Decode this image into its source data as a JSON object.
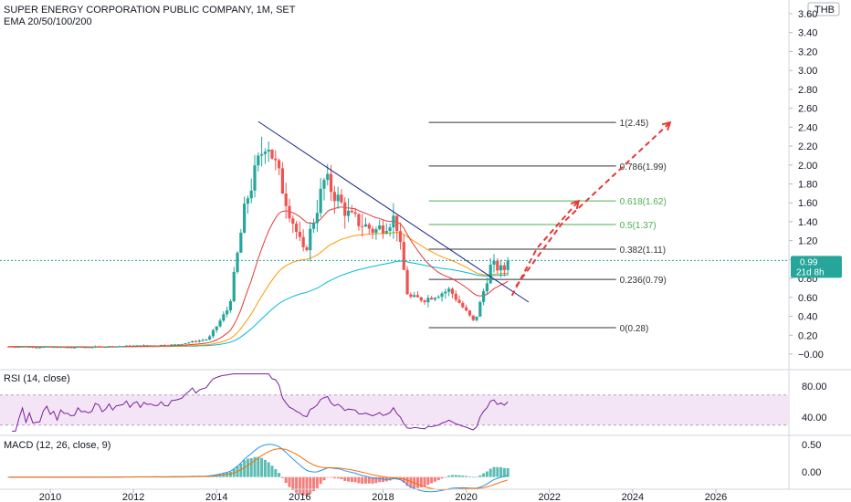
{
  "header": {
    "title": "SUPER ENERGY CORPORATION PUBLIC COMPANY, 1M, SET",
    "indicator": "EMA 20/50/100/200",
    "currency": "THB"
  },
  "price_badge": {
    "value": "0.99",
    "countdown": "21d 8h",
    "color": "#26a69a"
  },
  "rsi_panel": {
    "label": "RSI (14, close)",
    "ticks": [
      "80.00",
      "40.00"
    ]
  },
  "macd_panel": {
    "label": "MACD (12, 26, close, 9)",
    "ticks": [
      "0.50",
      "0.00"
    ]
  },
  "colors": {
    "up": "#26a69a",
    "down": "#ef5350",
    "ema20": "#e53935",
    "ema50": "#ff9800",
    "ema100": "#00bcd4",
    "trendline": "#1a237e",
    "rsi": "#7b1fa2",
    "fib_gray": "#333333",
    "fib_green": "#4caf50",
    "forecast": "#e53935"
  },
  "chart_data": {
    "type": "candlestick",
    "x_ticks": [
      "2010",
      "2012",
      "2014",
      "2016",
      "2018",
      "2020",
      "2022",
      "2024",
      "2026"
    ],
    "y_ticks": [
      "3.60",
      "3.40",
      "3.20",
      "3.00",
      "2.80",
      "2.60",
      "2.40",
      "2.20",
      "2.00",
      "1.80",
      "1.60",
      "1.40",
      "1.20",
      "1.00",
      "0.80",
      "0.60",
      "0.40",
      "0.20",
      "0.00"
    ],
    "y_range": [
      -0.05,
      3.62
    ],
    "x_range": [
      2009.0,
      2027.0
    ],
    "price_ohlc_anchor_points": [
      {
        "date": 2009.0,
        "close": 0.08
      },
      {
        "date": 2010.5,
        "close": 0.07
      },
      {
        "date": 2013.0,
        "close": 0.1
      },
      {
        "date": 2013.8,
        "close": 0.16
      },
      {
        "date": 2014.3,
        "close": 0.5
      },
      {
        "date": 2014.7,
        "close": 1.6
      },
      {
        "date": 2015.2,
        "close": 2.3
      },
      {
        "date": 2015.8,
        "close": 1.45
      },
      {
        "date": 2016.1,
        "close": 1.05
      },
      {
        "date": 2016.6,
        "close": 1.85
      },
      {
        "date": 2017.2,
        "close": 1.45
      },
      {
        "date": 2017.8,
        "close": 1.3
      },
      {
        "date": 2018.3,
        "close": 1.45
      },
      {
        "date": 2018.6,
        "close": 0.6
      },
      {
        "date": 2019.0,
        "close": 0.58
      },
      {
        "date": 2019.6,
        "close": 0.68
      },
      {
        "date": 2020.2,
        "close": 0.33
      },
      {
        "date": 2020.6,
        "close": 0.95
      },
      {
        "date": 2020.9,
        "close": 0.88
      },
      {
        "date": 2021.0,
        "close": 0.99
      }
    ],
    "fibonacci": [
      {
        "label": "1(2.45)",
        "value": 2.45,
        "color": "gray"
      },
      {
        "label": "0.786(1.99)",
        "value": 1.99,
        "color": "gray"
      },
      {
        "label": "0.618(1.62)",
        "value": 1.62,
        "color": "green"
      },
      {
        "label": "0.5(1.37)",
        "value": 1.37,
        "color": "green"
      },
      {
        "label": "0.382(1.11)",
        "value": 1.11,
        "color": "gray"
      },
      {
        "label": "0.236(0.79)",
        "value": 0.79,
        "color": "gray"
      },
      {
        "label": "0(0.28)",
        "value": 0.28,
        "color": "gray"
      }
    ],
    "fib_x_range": [
      2019.1,
      2023.6
    ],
    "trendline": {
      "x1": 2015.0,
      "y1": 2.46,
      "x2": 2021.5,
      "y2": 0.55
    },
    "forecast_arrows": [
      {
        "points": [
          [
            2021.1,
            0.62
          ],
          [
            2021.7,
            1.12
          ],
          [
            2022.7,
            1.62
          ]
        ]
      },
      {
        "points": [
          [
            2021.2,
            0.72
          ],
          [
            2022.3,
            1.38
          ],
          [
            2024.9,
            2.45
          ]
        ]
      }
    ],
    "rsi": {
      "ylim": [
        20,
        100
      ],
      "band": [
        30,
        70
      ],
      "ticks": [
        80,
        40
      ]
    },
    "macd": {
      "ylim": [
        -0.15,
        0.62
      ],
      "ticks": [
        0.5,
        0.0
      ]
    }
  }
}
